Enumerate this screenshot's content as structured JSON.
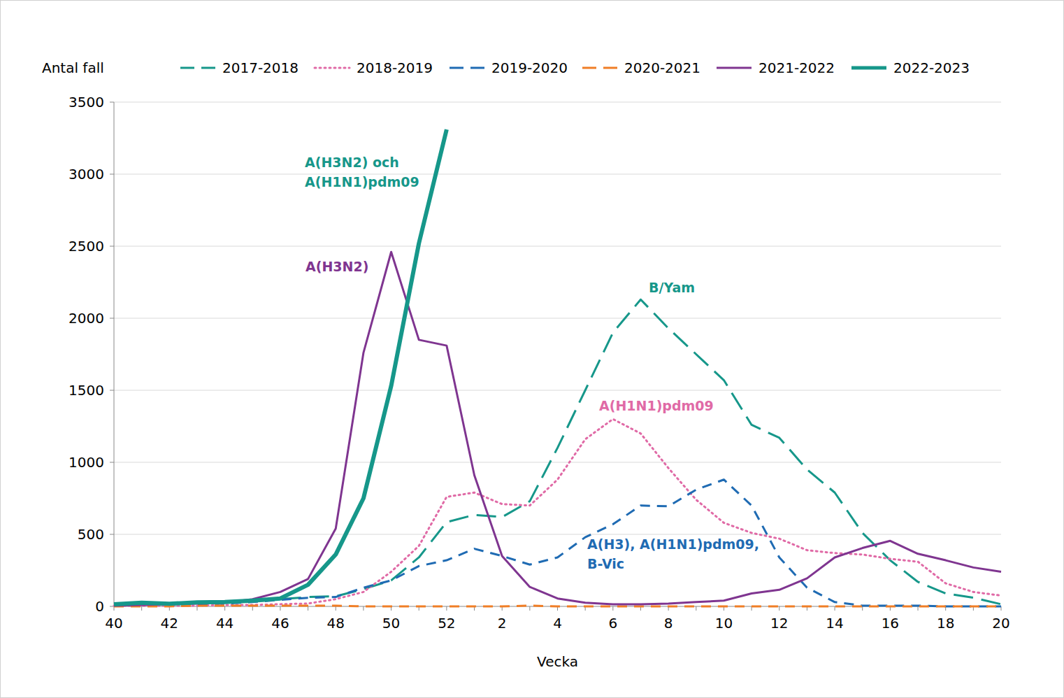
{
  "chart_data": {
    "type": "line",
    "y_label": "Antal fall",
    "x_label": "Vecka",
    "categories": [
      40,
      null,
      42,
      null,
      44,
      null,
      46,
      null,
      48,
      null,
      50,
      null,
      52,
      null,
      2,
      null,
      4,
      null,
      6,
      null,
      8,
      null,
      10,
      null,
      12,
      null,
      14,
      null,
      16,
      null,
      18,
      null,
      20
    ],
    "ylim": [
      0,
      3500
    ],
    "yticks": [
      0,
      500,
      1000,
      1500,
      2000,
      2500,
      3000,
      3500
    ],
    "grid": true,
    "legend": "top",
    "series": [
      {
        "name": "2017-2018",
        "color": "#16978a",
        "line_style": "dashed",
        "values": [
          10,
          15,
          15,
          20,
          25,
          35,
          50,
          65,
          70,
          120,
          180,
          340,
          585,
          635,
          620,
          730,
          1100,
          1500,
          1900,
          2130,
          1930,
          1750,
          1570,
          1260,
          1170,
          950,
          790,
          510,
          320,
          170,
          90,
          60,
          15
        ]
      },
      {
        "name": "2018-2019",
        "color": "#e06aa6",
        "line_style": "dotted",
        "values": [
          5,
          5,
          5,
          5,
          10,
          10,
          15,
          20,
          50,
          100,
          240,
          420,
          760,
          790,
          710,
          700,
          880,
          1160,
          1300,
          1200,
          960,
          740,
          580,
          510,
          470,
          390,
          370,
          360,
          330,
          310,
          160,
          100,
          75
        ]
      },
      {
        "name": "2019-2020",
        "color": "#1f6bb3",
        "line_style": "dashed",
        "values": [
          5,
          5,
          10,
          15,
          20,
          30,
          45,
          60,
          65,
          130,
          180,
          280,
          320,
          400,
          350,
          290,
          340,
          480,
          570,
          700,
          695,
          810,
          880,
          700,
          340,
          130,
          30,
          5,
          5,
          5,
          0,
          0,
          0
        ]
      },
      {
        "name": "2020-2021",
        "color": "#f07e26",
        "line_style": "dashed",
        "values": [
          0,
          0,
          0,
          5,
          5,
          5,
          5,
          5,
          5,
          0,
          0,
          0,
          0,
          0,
          0,
          5,
          0,
          0,
          0,
          0,
          0,
          0,
          0,
          0,
          0,
          0,
          0,
          0,
          0,
          0,
          0,
          0,
          0
        ]
      },
      {
        "name": "2021-2022",
        "color": "#7f3590",
        "line_style": "solid",
        "values": [
          5,
          10,
          15,
          20,
          25,
          50,
          100,
          190,
          540,
          1760,
          2460,
          1850,
          1810,
          910,
          350,
          135,
          55,
          25,
          15,
          15,
          20,
          30,
          40,
          90,
          115,
          195,
          340,
          405,
          455,
          365,
          320,
          270,
          240
        ]
      },
      {
        "name": "2022-2023",
        "color": "#16978a",
        "line_style": "solid",
        "values": [
          15,
          25,
          18,
          28,
          30,
          40,
          55,
          150,
          360,
          750,
          1530,
          2520,
          3310,
          null,
          null,
          null,
          null,
          null,
          null,
          null,
          null,
          null,
          null,
          null,
          null,
          null,
          null,
          null,
          null,
          null,
          null,
          null,
          null
        ]
      }
    ],
    "annotations": [
      {
        "text": [
          "A(H3N2) och",
          "A(H1N1)pdm09"
        ],
        "color": "#16978a"
      },
      {
        "text": [
          "A(H3N2)"
        ],
        "color": "#7f3590"
      },
      {
        "text": [
          "B/Yam"
        ],
        "color": "#16978a"
      },
      {
        "text": [
          "A(H1N1)pdm09"
        ],
        "color": "#e06aa6"
      },
      {
        "text": [
          "A(H3), A(H1N1)pdm09,",
          "B-Vic"
        ],
        "color": "#1f6bb3"
      }
    ]
  }
}
